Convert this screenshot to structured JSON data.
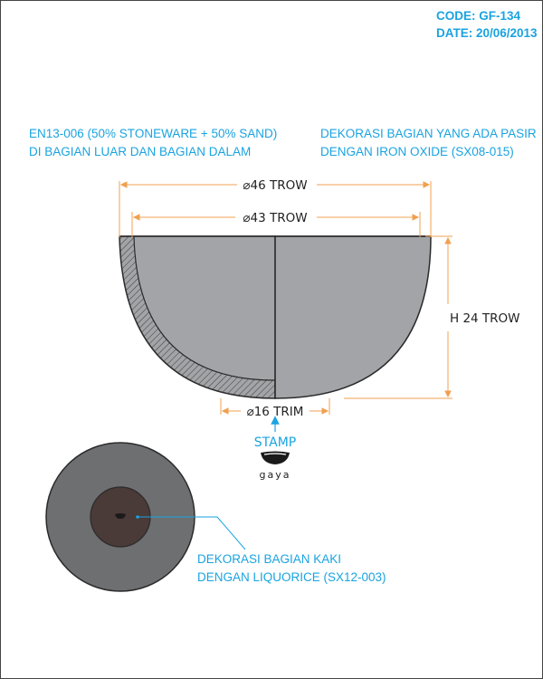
{
  "header": {
    "code": "CODE: GF-134",
    "date": "DATE: 20/06/2013"
  },
  "notes": {
    "material_line1": "EN13-006  (50% STONEWARE + 50% SAND)",
    "material_line2": "DI BAGIAN LUAR DAN BAGIAN DALAM",
    "decoration_line1": "DEKORASI BAGIAN YANG ADA PASIR",
    "decoration_line2": "DENGAN IRON OXIDE (SX08-015)",
    "foot_line1": "DEKORASI BAGIAN KAKI",
    "foot_line2": "DENGAN LIQUORICE (SX12-003)"
  },
  "dimensions": {
    "outer_diameter": "⌀46 TROW",
    "inner_diameter": "⌀43 TROW",
    "height": "H 24 TROW",
    "foot_diameter": "⌀16 TRIM"
  },
  "stamp": {
    "label": "STAMP",
    "logo_text": "gaya"
  },
  "colors": {
    "accent_blue": "#1aa3e0",
    "dimension_orange": "#f0a050",
    "bowl_gray": "#a2a4a7",
    "bottom_gray": "#6e6f71",
    "foot_brown": "#4a3a38",
    "outline": "#2b2b2b"
  }
}
